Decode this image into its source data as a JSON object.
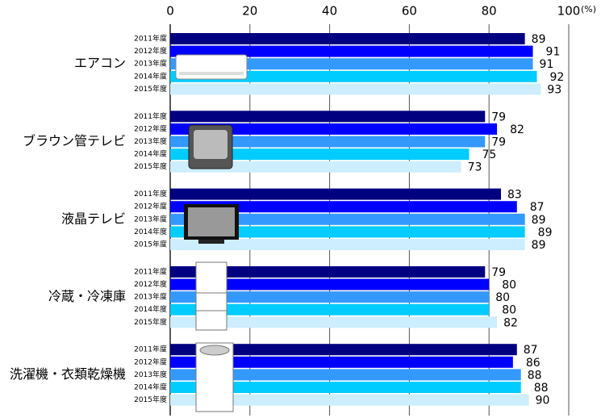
{
  "chart_data": {
    "type": "bar",
    "orientation": "horizontal",
    "x_label": "(%)",
    "categories": [
      "エアコン",
      "ブラウン管テレビ",
      "液晶テレビ",
      "冷蔵・冷凍庫",
      "洗濯機・衣類乾燥機"
    ],
    "series": [
      {
        "name": "2011年度",
        "color": "#000080",
        "values": [
          89,
          79,
          83,
          79,
          87
        ]
      },
      {
        "name": "2012年度",
        "color": "#0000ff",
        "values": [
          91,
          82,
          87,
          80,
          86
        ]
      },
      {
        "name": "2013年度",
        "color": "#3399ff",
        "values": [
          91,
          79,
          89,
          80,
          88
        ]
      },
      {
        "name": "2014年度",
        "color": "#00ccff",
        "values": [
          92,
          75,
          89,
          80,
          88
        ]
      },
      {
        "name": "2015年度",
        "color": "#cceeff",
        "values": [
          93,
          73,
          89,
          82,
          90
        ]
      }
    ],
    "xlim": [
      0,
      100
    ],
    "xticks": [
      0,
      20,
      40,
      60,
      80,
      100
    ],
    "grid": true
  }
}
